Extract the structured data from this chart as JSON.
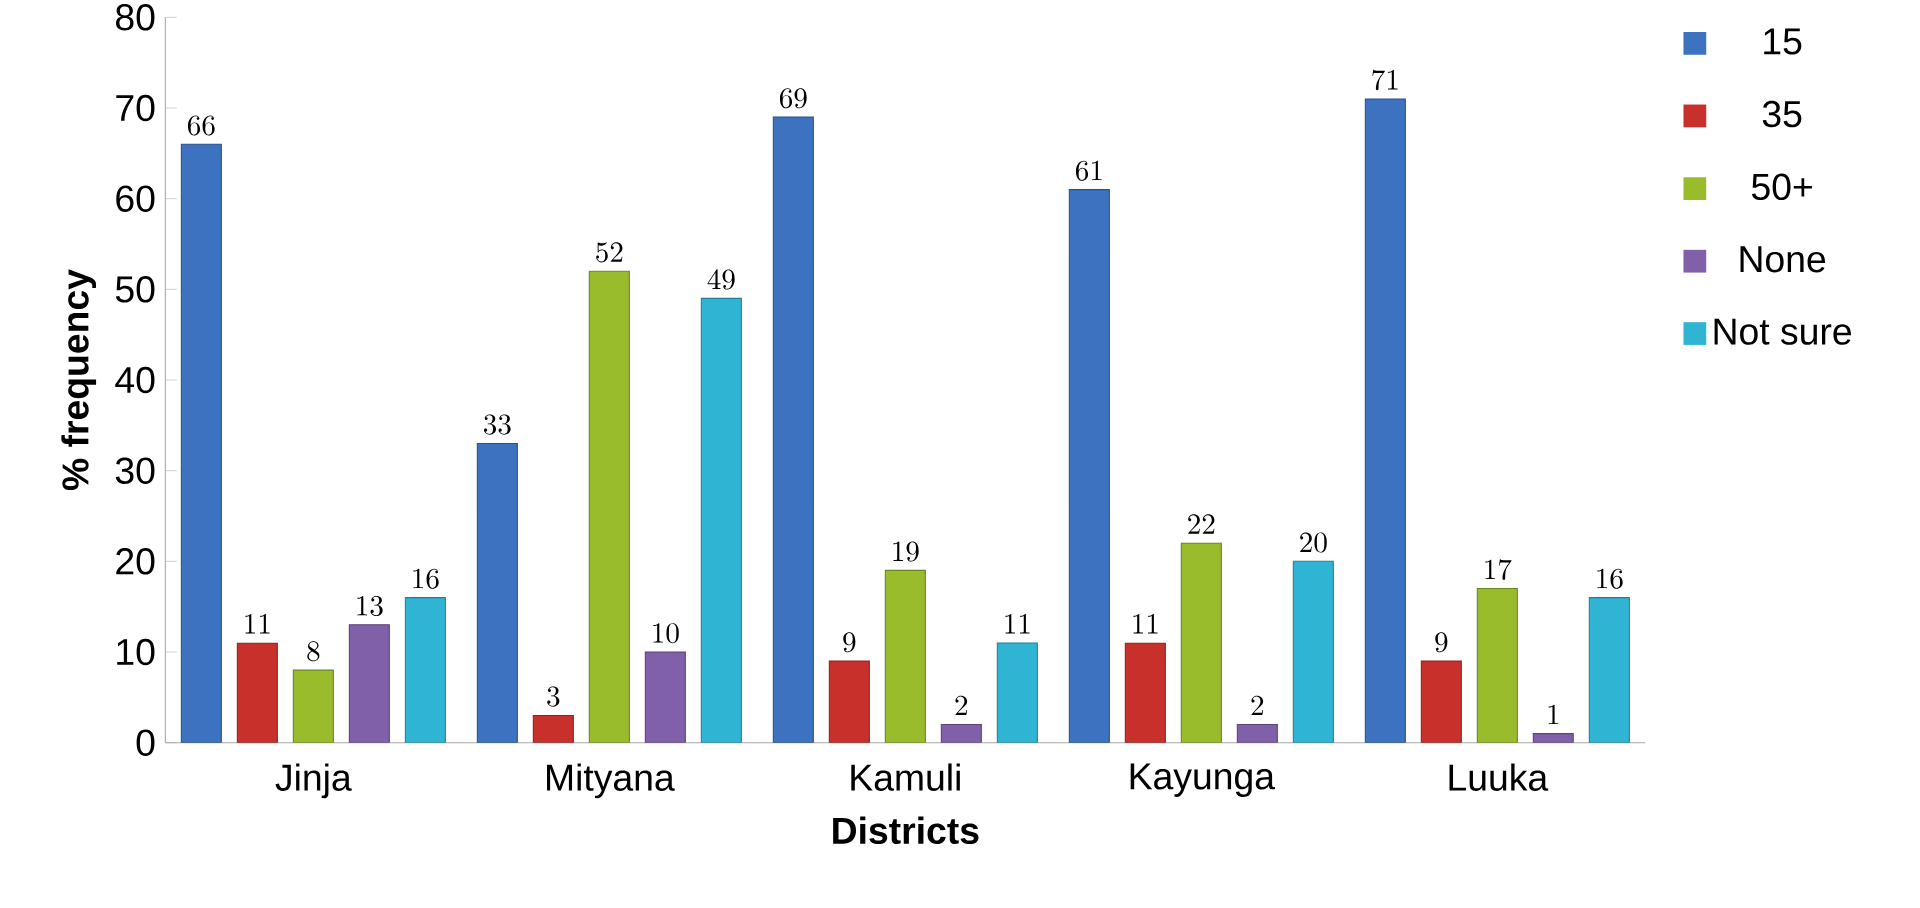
{
  "chart_data": {
    "type": "bar",
    "xlabel": "Districts",
    "ylabel": "% frequency",
    "categories": [
      "Jinja",
      "Mityana",
      "Kamuli",
      "Kayunga",
      "Luuka"
    ],
    "series": [
      {
        "name": "15",
        "color": "#3c72c0",
        "values": [
          66,
          33,
          69,
          61,
          71
        ]
      },
      {
        "name": "35",
        "color": "#c8302c",
        "values": [
          11,
          3,
          9,
          11,
          9
        ]
      },
      {
        "name": "50+",
        "color": "#98bc2c",
        "values": [
          8,
          52,
          19,
          22,
          17
        ]
      },
      {
        "name": "None",
        "color": "#8060a8",
        "values": [
          13,
          10,
          2,
          2,
          1
        ]
      },
      {
        "name": "Not sure",
        "color": "#30b4d4",
        "values": [
          16,
          49,
          11,
          20,
          16
        ]
      }
    ],
    "ylim": [
      0,
      80
    ],
    "yticks": [
      0,
      10,
      20,
      30,
      40,
      50,
      60,
      70,
      80
    ],
    "data_labels": true,
    "legend": "right",
    "grid": false
  }
}
